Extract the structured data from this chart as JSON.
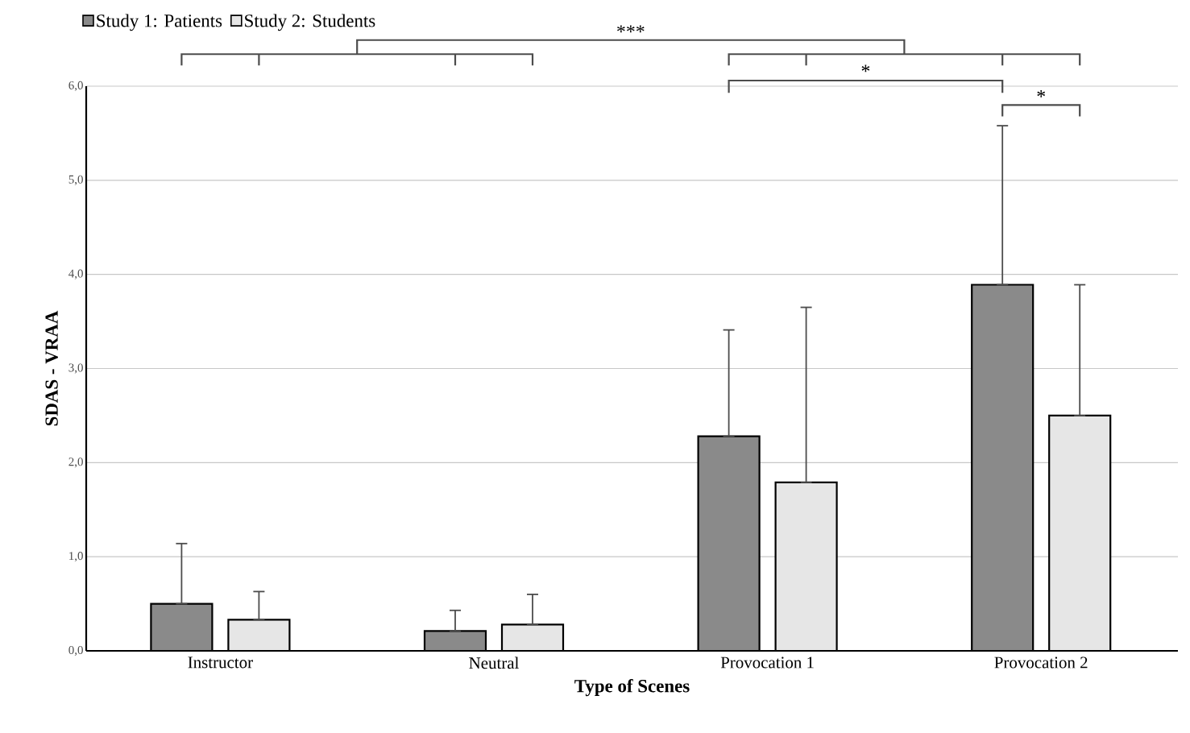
{
  "chart_data": {
    "type": "bar",
    "xlabel": "Type of Scenes",
    "ylabel": "SDAS - VRAA",
    "categories": [
      "Instructor",
      "Neutral",
      "Provocation 1",
      "Provocation 2"
    ],
    "series": [
      {
        "name": "Study 1: Patients",
        "color": "#8a8a8a",
        "values": [
          0.5,
          0.21,
          2.28,
          3.89
        ],
        "errors": [
          [
            0.5,
            1.14
          ],
          [
            0.21,
            0.43
          ],
          [
            2.28,
            3.41
          ],
          [
            3.89,
            5.58
          ]
        ]
      },
      {
        "name": "Study 2: Students",
        "color": "#e6e6e6",
        "values": [
          0.33,
          0.28,
          1.79,
          2.5
        ],
        "errors": [
          [
            0.33,
            0.63
          ],
          [
            0.28,
            0.6
          ],
          [
            1.79,
            3.65
          ],
          [
            2.5,
            3.89
          ]
        ]
      }
    ],
    "ylim": [
      0,
      6
    ],
    "yticks": [
      {
        "value": 0,
        "label": "0,0"
      },
      {
        "value": 1,
        "label": "1,0"
      },
      {
        "value": 2,
        "label": "2,0"
      },
      {
        "value": 3,
        "label": "3,0"
      },
      {
        "value": 4,
        "label": "4,0"
      },
      {
        "value": 5,
        "label": "5,0"
      },
      {
        "value": 6,
        "label": "6,0"
      }
    ],
    "grid": "y",
    "legend": "top left",
    "annotations": [
      "***",
      "*",
      "*"
    ]
  }
}
